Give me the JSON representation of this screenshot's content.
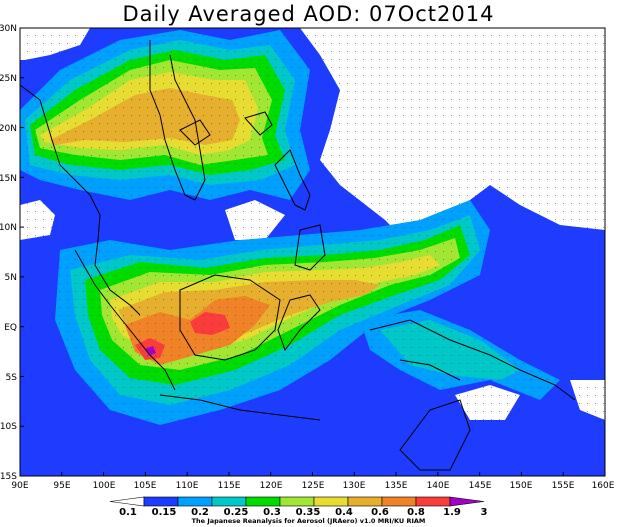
{
  "title": "Daily Averaged AOD: 07Oct2014",
  "credit": "The Japanese Reanalysis for Aerosol (JRAero) v1.0 MRI/KU RIAM",
  "lat_ticks": [
    "30N",
    "25N",
    "20N",
    "15N",
    "10N",
    "5N",
    "EQ",
    "5S",
    "10S",
    "15S"
  ],
  "lon_ticks": [
    "90E",
    "95E",
    "100E",
    "105E",
    "110E",
    "115E",
    "120E",
    "125E",
    "130E",
    "135E",
    "140E",
    "145E",
    "150E",
    "155E",
    "160E"
  ],
  "colorbar": {
    "labels": [
      "0.1",
      "0.15",
      "0.2",
      "0.25",
      "0.3",
      "0.35",
      "0.4",
      "0.6",
      "0.8",
      "1.9",
      "3"
    ],
    "colors": [
      "#ffffff",
      "#1e3cff",
      "#00a0ff",
      "#00c8c8",
      "#00dc00",
      "#a0e632",
      "#e6dc32",
      "#e6af2d",
      "#f08228",
      "#fa3c3c",
      "#a000c8"
    ]
  }
}
